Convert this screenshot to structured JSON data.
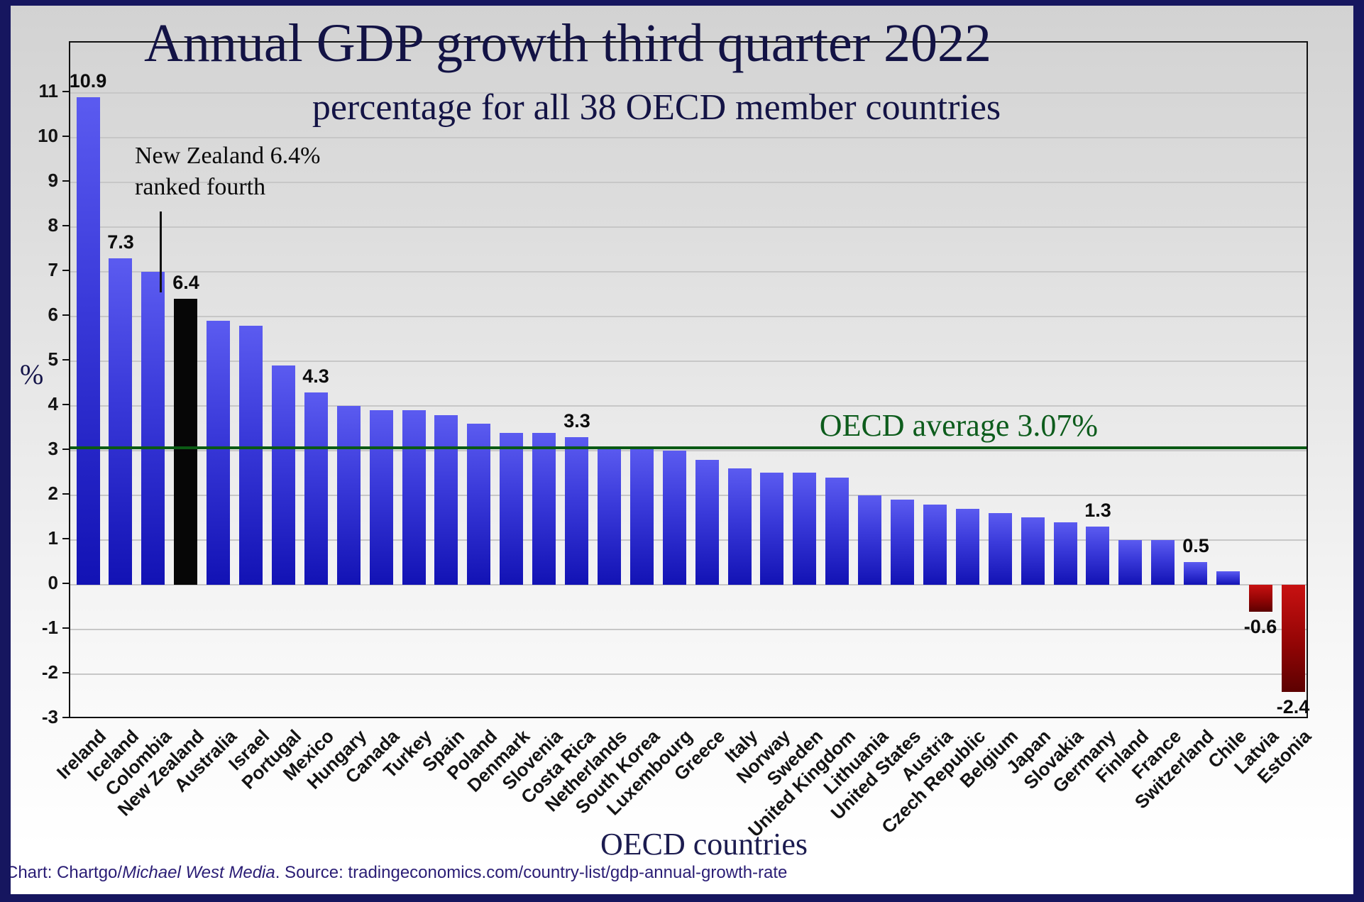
{
  "chart_data": {
    "type": "bar",
    "title": "Annual GDP growth third quarter 2022",
    "subtitle": "percentage for all 38 OECD member countries",
    "xlabel": "OECD countries",
    "ylabel": "%",
    "ylim": [
      -3,
      12.2
    ],
    "yticks": [
      11,
      10,
      9,
      8,
      7,
      6,
      5,
      4,
      3,
      2,
      1,
      0,
      -1,
      -2,
      -3
    ],
    "grid": "horizontal",
    "average": {
      "label": "OECD average 3.07%",
      "value": 3.07,
      "color": "#0b5a14"
    },
    "points": [
      {
        "name": "Ireland",
        "value": 10.9,
        "label": "10.9"
      },
      {
        "name": "Iceland",
        "value": 7.3,
        "label": "7.3"
      },
      {
        "name": "Colombia",
        "value": 7.0
      },
      {
        "name": "New Zealand",
        "value": 6.4,
        "label": "6.4",
        "highlight": true
      },
      {
        "name": "Australia",
        "value": 5.9
      },
      {
        "name": "Israel",
        "value": 5.8
      },
      {
        "name": "Portugal",
        "value": 4.9
      },
      {
        "name": "Mexico",
        "value": 4.3,
        "label": "4.3"
      },
      {
        "name": "Hungary",
        "value": 4.0
      },
      {
        "name": "Canada",
        "value": 3.9
      },
      {
        "name": "Turkey",
        "value": 3.9
      },
      {
        "name": "Spain",
        "value": 3.8
      },
      {
        "name": "Poland",
        "value": 3.6
      },
      {
        "name": "Denmark",
        "value": 3.4
      },
      {
        "name": "Slovenia",
        "value": 3.4
      },
      {
        "name": "Costa Rica",
        "value": 3.3,
        "label": "3.3"
      },
      {
        "name": "Netherlands",
        "value": 3.1
      },
      {
        "name": "South Korea",
        "value": 3.1
      },
      {
        "name": "Luxembourg",
        "value": 3.0
      },
      {
        "name": "Greece",
        "value": 2.8
      },
      {
        "name": "Italy",
        "value": 2.6
      },
      {
        "name": "Norway",
        "value": 2.5
      },
      {
        "name": "Sweden",
        "value": 2.5
      },
      {
        "name": "United Kingdom",
        "value": 2.4
      },
      {
        "name": "Lithuania",
        "value": 2.0
      },
      {
        "name": "United States",
        "value": 1.9
      },
      {
        "name": "Austria",
        "value": 1.8
      },
      {
        "name": "Czech Republic",
        "value": 1.7
      },
      {
        "name": "Belgium",
        "value": 1.6
      },
      {
        "name": "Japan",
        "value": 1.5
      },
      {
        "name": "Slovakia",
        "value": 1.4
      },
      {
        "name": "Germany",
        "value": 1.3,
        "label": "1.3"
      },
      {
        "name": "Finland",
        "value": 1.0
      },
      {
        "name": "France",
        "value": 1.0
      },
      {
        "name": "Switzerland",
        "value": 0.5,
        "label": "0.5"
      },
      {
        "name": "Chile",
        "value": 0.3
      },
      {
        "name": "Latvia",
        "value": -0.6,
        "label": "-0.6"
      },
      {
        "name": "Estonia",
        "value": -2.4,
        "label": "-2.4"
      }
    ],
    "colors": {
      "bar_gradient_top": "#5b5bf0",
      "bar_gradient_bottom": "#1212b4",
      "highlight_bar": "#060606",
      "negative_gradient_top": "#c81111",
      "negative_gradient_bottom": "#5c0101",
      "average_line": "#0b5a14",
      "title_text": "#131345",
      "frame_border": "#16165f"
    }
  },
  "annotation": {
    "line1": "New Zealand 6.4%",
    "line2": "ranked fourth"
  },
  "footer": {
    "prefix": "Chart: Chartgo/",
    "italic": "Michael West Media",
    "suffix": ". Source: tradingeconomics.com/country-list/gdp-annual-growth-rate"
  }
}
